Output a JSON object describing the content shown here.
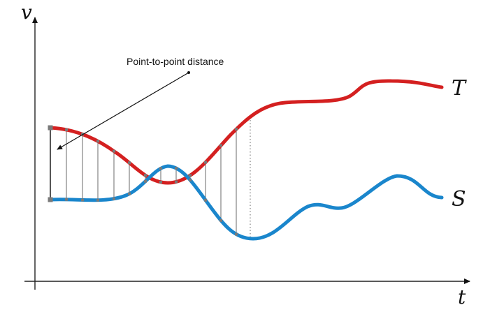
{
  "axes": {
    "x_label": "t",
    "y_label": "v"
  },
  "annotation": {
    "text": "Point-to-point distance"
  },
  "series": [
    {
      "label": "T",
      "color": "#d42020"
    },
    {
      "label": "S",
      "color": "#1a86cc"
    }
  ]
}
